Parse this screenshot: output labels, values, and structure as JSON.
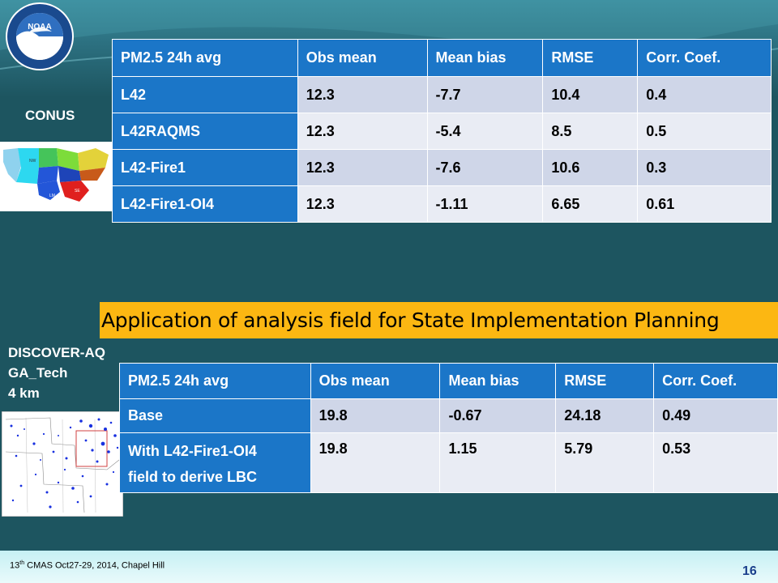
{
  "labels": {
    "conus": "CONUS",
    "discover_line1": "DISCOVER-AQ",
    "discover_line2": "GA_Tech",
    "discover_line3": "4 km"
  },
  "banner": "Application of analysis field for State Implementation Planning",
  "table_conus": {
    "headers": [
      "PM2.5 24h avg",
      "Obs mean",
      "Mean bias",
      "RMSE",
      "Corr. Coef."
    ],
    "rows": [
      [
        "L42",
        "12.3",
        "-7.7",
        "10.4",
        "0.4"
      ],
      [
        "L42RAQMS",
        "12.3",
        "-5.4",
        "8.5",
        "0.5"
      ],
      [
        "L42-Fire1",
        "12.3",
        "-7.6",
        "10.6",
        "0.3"
      ],
      [
        "L42-Fire1-OI4",
        "12.3",
        "-1.11",
        "6.65",
        "0.61"
      ]
    ]
  },
  "table_discover": {
    "headers": [
      "PM2.5 24h avg",
      "Obs mean",
      "Mean bias",
      "RMSE",
      "Corr. Coef."
    ],
    "rows": [
      [
        "Base",
        "19.8",
        "-0.67",
        "24.18",
        "0.49"
      ],
      [
        "With L42-Fire1-OI4",
        "19.8",
        "1.15",
        "5.79",
        "0.53"
      ]
    ],
    "row2_line2": "field to derive LBC"
  },
  "logo": {
    "text": "NOAA",
    "ring_text": "NATIONAL OCEANIC AND ATMOSPHERIC ADMINISTRATION · U.S. DEPARTMENT OF COMMERCE"
  },
  "footer": {
    "pre": "13",
    "sup": "th",
    "post": " CMAS Oct27-29, 2014, Chapel Hill",
    "page": "16"
  },
  "colors": {
    "header_blue": "#1b76c8",
    "banner_yellow": "#fcb712",
    "background_teal": "#1d5560"
  }
}
